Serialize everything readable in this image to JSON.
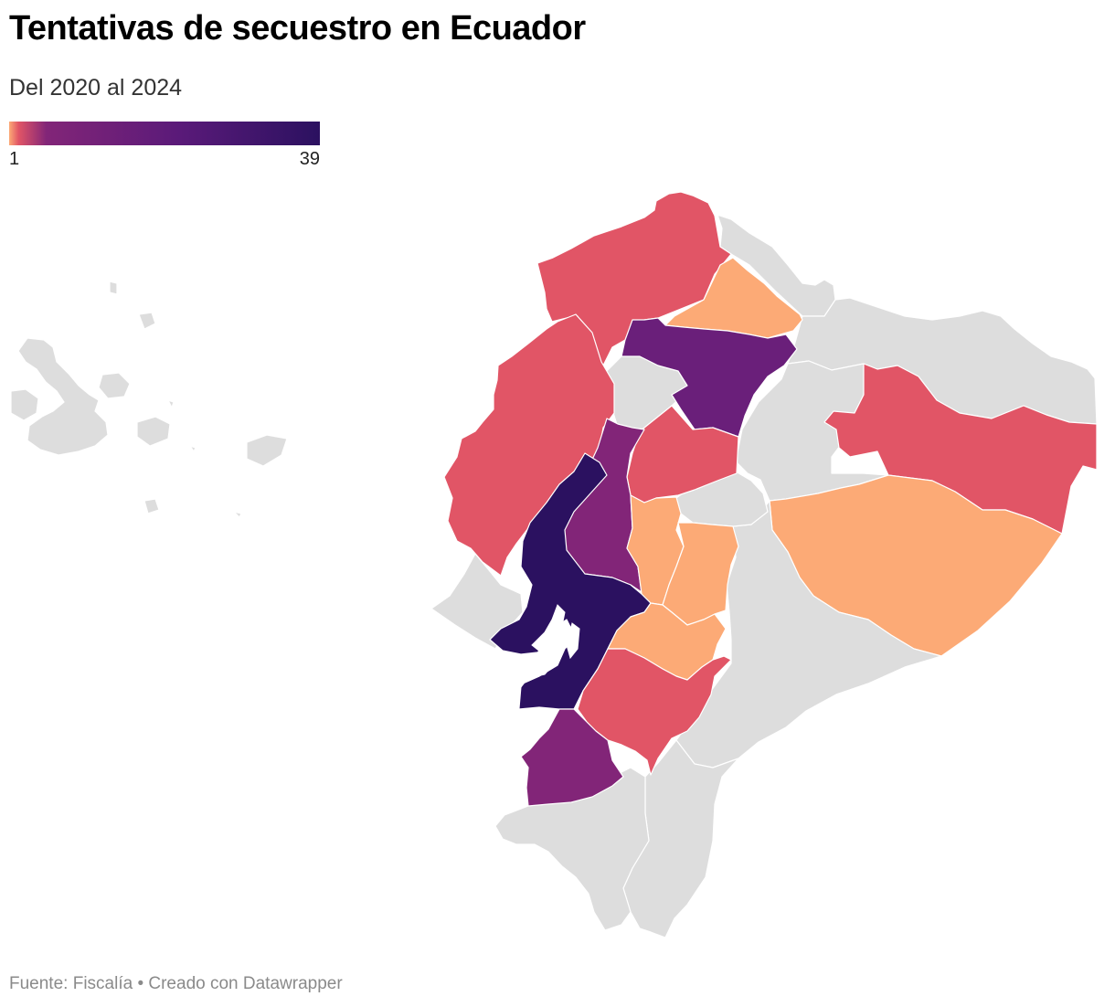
{
  "header": {
    "title": "Tentativas de secuestro en Ecuador",
    "subtitle": "Del 2020 al 2024"
  },
  "legend": {
    "min_label": "1",
    "max_label": "39",
    "min_value": 1,
    "max_value": 39,
    "gradient_colors": [
      "#fcaa76",
      "#e15566",
      "#822578",
      "#5a1a79",
      "#2b1160"
    ]
  },
  "map_colors": {
    "no_data": "#dddddd",
    "border": "#ffffff"
  },
  "regions": [
    {
      "id": "galapagos",
      "color": "#dddddd"
    },
    {
      "id": "esmeraldas",
      "color": "#e15566"
    },
    {
      "id": "carchi",
      "color": "#dddddd"
    },
    {
      "id": "imbabura",
      "color": "#fcaa76"
    },
    {
      "id": "pichincha",
      "color": "#6a1f7a"
    },
    {
      "id": "santo-domingo",
      "color": "#dddddd"
    },
    {
      "id": "manabi",
      "color": "#e15566"
    },
    {
      "id": "los-rios",
      "color": "#822578"
    },
    {
      "id": "cotopaxi",
      "color": "#e15566"
    },
    {
      "id": "guayas",
      "color": "#2b1160"
    },
    {
      "id": "santa-elena",
      "color": "#dddddd"
    },
    {
      "id": "bolivar",
      "color": "#fcaa76"
    },
    {
      "id": "tungurahua",
      "color": "#dddddd"
    },
    {
      "id": "chimborazo",
      "color": "#fcaa76"
    },
    {
      "id": "canar",
      "color": "#fcaa76"
    },
    {
      "id": "azuay",
      "color": "#e15566"
    },
    {
      "id": "el-oro",
      "color": "#822578"
    },
    {
      "id": "loja",
      "color": "#dddddd"
    },
    {
      "id": "zamora",
      "color": "#dddddd"
    },
    {
      "id": "morona",
      "color": "#dddddd"
    },
    {
      "id": "pastaza",
      "color": "#fcaa76"
    },
    {
      "id": "napo",
      "color": "#dddddd"
    },
    {
      "id": "orellana",
      "color": "#e15566"
    },
    {
      "id": "sucumbios",
      "color": "#dddddd"
    }
  ],
  "footer": {
    "text": "Fuente: Fiscalía • Creado con Datawrapper"
  }
}
